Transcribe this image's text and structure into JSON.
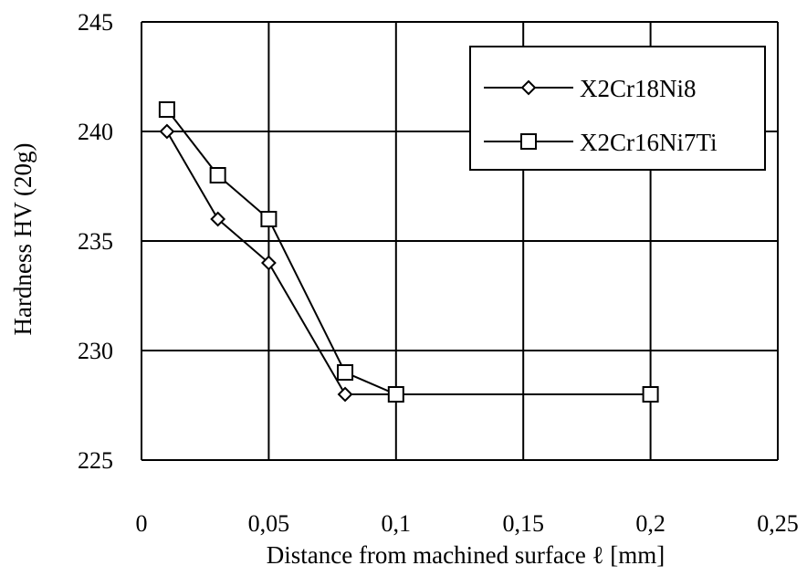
{
  "chart_data": {
    "type": "line",
    "xlabel": "Distance from machined surface ℓ  [mm]",
    "ylabel": "Hardness    HV (20g)",
    "xlim": [
      0,
      0.25
    ],
    "ylim": [
      225,
      245
    ],
    "x_ticks": [
      0,
      0.05,
      0.1,
      0.15,
      0.2,
      0.25
    ],
    "x_tick_labels": [
      "0",
      "0,05",
      "0,1",
      "0,15",
      "0,2",
      "0,25"
    ],
    "y_ticks": [
      225,
      230,
      235,
      240,
      245
    ],
    "y_tick_labels": [
      "225",
      "230",
      "235",
      "240",
      "245"
    ],
    "grid": true,
    "legend_position": "top-right",
    "series": [
      {
        "name": "X2Cr18Ni8",
        "marker": "diamond",
        "color": "#000000",
        "x": [
          0.01,
          0.03,
          0.05,
          0.08,
          0.1,
          0.2
        ],
        "y": [
          240,
          236,
          234,
          228,
          228,
          228
        ]
      },
      {
        "name": "X2Cr16Ni7Ti",
        "marker": "square",
        "color": "#000000",
        "x": [
          0.01,
          0.03,
          0.05,
          0.08,
          0.1,
          0.2
        ],
        "y": [
          241,
          238,
          236,
          229,
          228,
          228
        ]
      }
    ]
  }
}
